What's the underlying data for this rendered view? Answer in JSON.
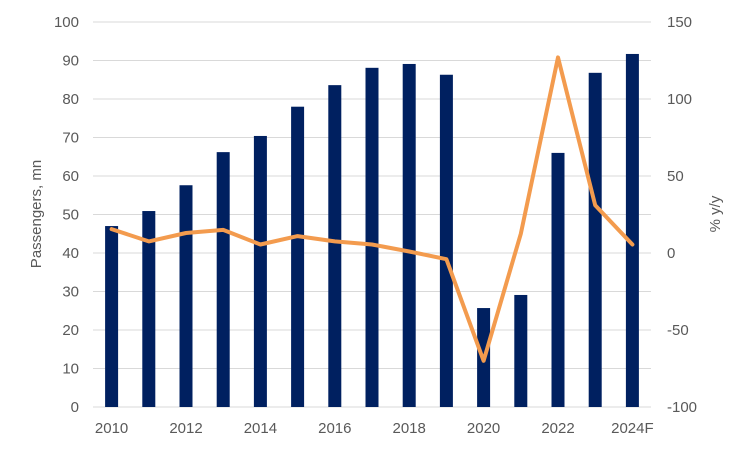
{
  "chart_data": {
    "type": "bar",
    "title": "",
    "categories": [
      "2010",
      "2011",
      "2012",
      "2013",
      "2014",
      "2015",
      "2016",
      "2017",
      "2018",
      "2019",
      "2020",
      "2021",
      "2022",
      "2023",
      "2024F"
    ],
    "x_tick_labels": [
      "2010",
      "2012",
      "2014",
      "2016",
      "2018",
      "2020",
      "2022",
      "2024F"
    ],
    "xlabel": "",
    "ylabel_left": "Passengers, mn",
    "ylabel_right": "% y/y",
    "ylim_left": [
      0,
      100
    ],
    "ylim_right": [
      -100,
      150
    ],
    "y_ticks_left": [
      "0",
      "10",
      "20",
      "30",
      "40",
      "50",
      "60",
      "70",
      "80",
      "90",
      "100"
    ],
    "y_ticks_right": [
      "-100",
      "-50",
      "0",
      "50",
      "100",
      "150"
    ],
    "grid": true,
    "legend": "none",
    "series": [
      {
        "type": "bar",
        "axis": "left",
        "color": "#002060",
        "values": [
          47.0,
          50.9,
          57.6,
          66.2,
          70.4,
          78.0,
          83.6,
          88.1,
          89.1,
          86.3,
          25.7,
          29.1,
          66.0,
          86.8,
          91.7
        ]
      },
      {
        "type": "line",
        "axis": "right",
        "color": "#F39B4E",
        "values": [
          15.5,
          7.5,
          13.0,
          15.0,
          5.5,
          11.0,
          7.5,
          5.5,
          1.0,
          -4.0,
          -70.0,
          12.5,
          127.0,
          31.0,
          5.5
        ]
      }
    ]
  }
}
